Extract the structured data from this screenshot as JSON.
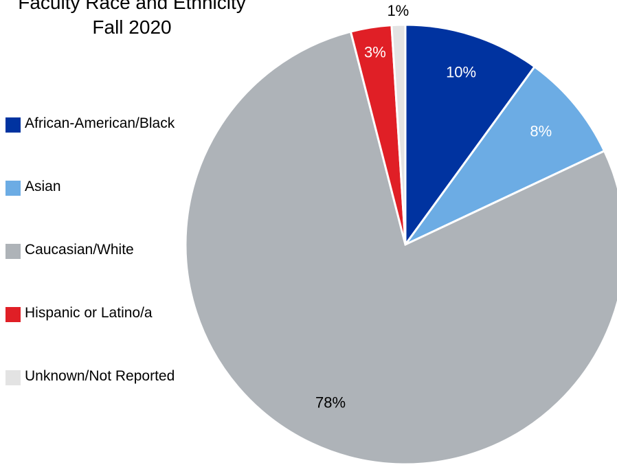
{
  "chart_data": {
    "type": "pie",
    "title": "Faculty Race and Ethnicity",
    "subtitle": "Fall 2020",
    "legend_position": "left",
    "categories": [
      "African-American/Black",
      "Asian",
      "Caucasian/White",
      "Hispanic or Latino/a",
      "Unknown/Not Reported"
    ],
    "values": [
      10,
      8,
      78,
      3,
      1
    ],
    "labels": [
      "10%",
      "8%",
      "78%",
      "3%",
      "1%"
    ],
    "colors": [
      "#0033A0",
      "#6CACE4",
      "#AEB3B8",
      "#E01F26",
      "#E3E3E3"
    ],
    "label_colors": [
      "#ffffff",
      "#ffffff",
      "#000000",
      "#ffffff",
      "#000000"
    ]
  }
}
